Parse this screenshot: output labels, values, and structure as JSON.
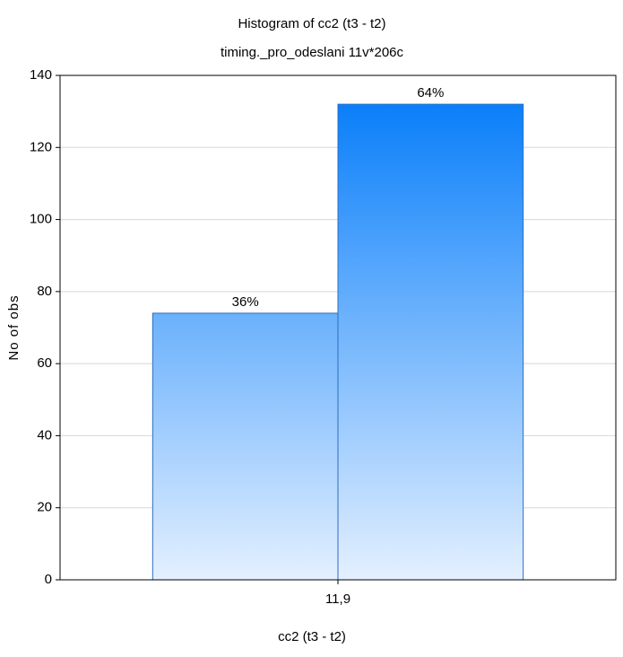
{
  "chart_data": {
    "type": "histogram",
    "title": "Histogram of cc2 (t3 - t2)",
    "subtitle": "timing._pro_odeslani 11v*206c",
    "xlabel": "cc2 (t3 - t2)",
    "ylabel": "No of obs",
    "bins": [
      10.9,
      11.9,
      12.9
    ],
    "values": [
      74,
      132
    ],
    "annotations": [
      {
        "value": 36,
        "label": "36%"
      },
      {
        "value": 64,
        "label": "64%"
      }
    ],
    "color_top": "#0a7ffa",
    "color_bottom": "#e4f0ff",
    "edge_color": "#2a6fc0",
    "xlim": [
      10.4,
      13.4
    ],
    "xticks": [
      {
        "value": 11.9,
        "label": "11,9"
      }
    ],
    "ylim": [
      0,
      140
    ],
    "yticks": [
      0,
      20,
      40,
      60,
      80,
      100,
      120,
      140
    ],
    "grid": true
  }
}
